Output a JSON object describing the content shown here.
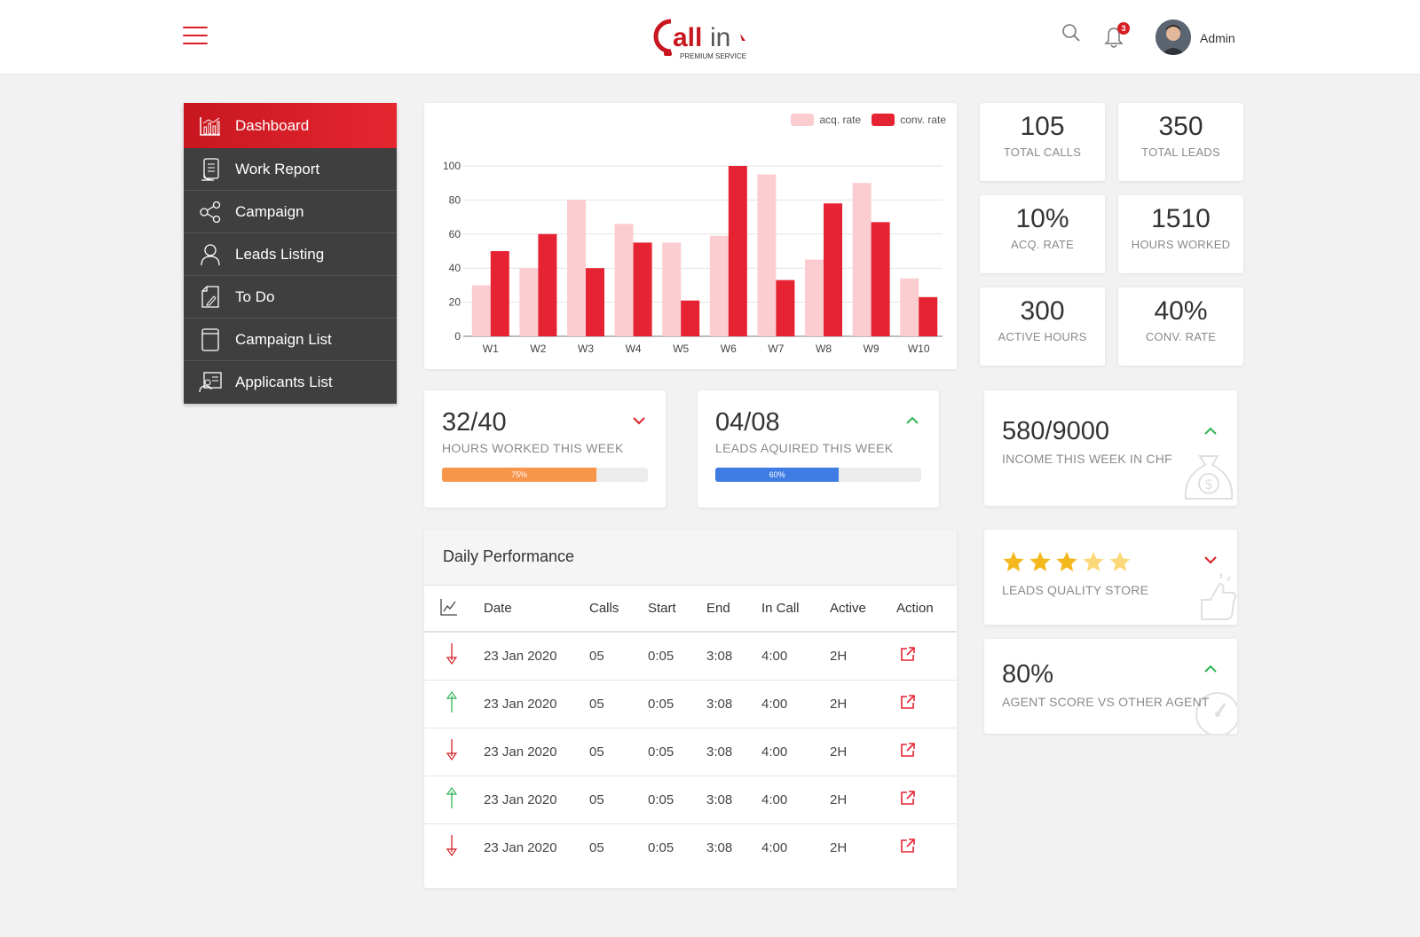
{
  "header": {
    "logo_text": "Call In",
    "logo_subtitle": "PREMIUM SERVICE",
    "notification_count": "3",
    "user_name": "Admin"
  },
  "sidebar": {
    "items": [
      {
        "label": "Dashboard",
        "icon": "chart-icon",
        "active": true
      },
      {
        "label": "Work Report",
        "icon": "report-icon"
      },
      {
        "label": "Campaign",
        "icon": "share-icon"
      },
      {
        "label": "Leads Listing",
        "icon": "user-icon"
      },
      {
        "label": "To Do",
        "icon": "todo-icon"
      },
      {
        "label": "Campaign List",
        "icon": "list-icon"
      },
      {
        "label": "Applicants List",
        "icon": "applicants-icon"
      }
    ]
  },
  "chart_data": {
    "type": "bar",
    "categories": [
      "W1",
      "W2",
      "W3",
      "W4",
      "W5",
      "W6",
      "W7",
      "W8",
      "W9",
      "W10"
    ],
    "series": [
      {
        "name": "acq. rate",
        "color": "#fbcdd0",
        "values": [
          30,
          40,
          80,
          66,
          55,
          59,
          95,
          45,
          90,
          34
        ]
      },
      {
        "name": "conv. rate",
        "color": "#e52332",
        "values": [
          50,
          60,
          40,
          55,
          21,
          100,
          33,
          78,
          67,
          23
        ]
      }
    ],
    "ylim": [
      0,
      100
    ],
    "yticks": [
      0,
      20,
      40,
      60,
      80,
      100
    ],
    "legend": "top-right",
    "grid": true
  },
  "stats": [
    {
      "value": "105",
      "label": "TOTAL CALLS"
    },
    {
      "value": "350",
      "label": "TOTAL LEADS"
    },
    {
      "value": "10%",
      "label": "ACQ. RATE"
    },
    {
      "value": "1510",
      "label": "HOURS WORKED"
    },
    {
      "value": "300",
      "label": "ACTIVE HOURS"
    },
    {
      "value": "40%",
      "label": "CONV. RATE"
    }
  ],
  "weekly": [
    {
      "value": "32/40",
      "label": "HOURS WORKED THIS WEEK",
      "trend": "down",
      "progress": 75,
      "progress_label": "75%",
      "color": "#f7954a"
    },
    {
      "value": "04/08",
      "label": "LEADS AQUIRED THIS WEEK",
      "trend": "up",
      "progress": 60,
      "progress_label": "60%",
      "color": "#3e7ce3"
    }
  ],
  "right_cards": {
    "income": {
      "value": "580/9000",
      "label": "INCOME THIS WEEK IN CHF",
      "trend": "up"
    },
    "quality": {
      "label": "LEADS QUALITY STORE",
      "rating": 3,
      "max": 5,
      "trend": "down"
    },
    "score": {
      "value": "80%",
      "label": "AGENT SCORE VS OTHER AGENT",
      "trend": "up"
    }
  },
  "table": {
    "title": "Daily Performance",
    "columns": [
      "Date",
      "Calls",
      "Start",
      "End",
      "In Call",
      "Active",
      "Action"
    ],
    "rows": [
      {
        "trend": "down",
        "date": "23 Jan 2020",
        "calls": "05",
        "start": "0:05",
        "end": "3:08",
        "in_call": "4:00",
        "active": "2H"
      },
      {
        "trend": "up",
        "date": "23 Jan 2020",
        "calls": "05",
        "start": "0:05",
        "end": "3:08",
        "in_call": "4:00",
        "active": "2H"
      },
      {
        "trend": "down",
        "date": "23 Jan 2020",
        "calls": "05",
        "start": "0:05",
        "end": "3:08",
        "in_call": "4:00",
        "active": "2H"
      },
      {
        "trend": "up",
        "date": "23 Jan 2020",
        "calls": "05",
        "start": "0:05",
        "end": "3:08",
        "in_call": "4:00",
        "active": "2H"
      },
      {
        "trend": "down",
        "date": "23 Jan 2020",
        "calls": "05",
        "start": "0:05",
        "end": "3:08",
        "in_call": "4:00",
        "active": "2H"
      }
    ]
  },
  "colors": {
    "accent": "#d81f26",
    "up": "#2eb352",
    "down": "#d81f26"
  }
}
